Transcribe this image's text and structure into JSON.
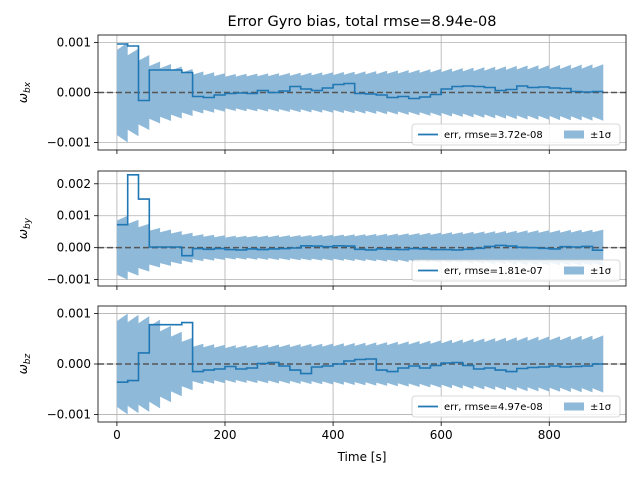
{
  "figure": {
    "title": "Error Gyro bias, total rmse=8.94e-08",
    "xlabel": "Time [s]",
    "legend_sigma_label": "±1σ"
  },
  "colors": {
    "line": "#1f77b4",
    "band": "#8fb9d9",
    "zero_line": "#555555",
    "grid": "#b0b0b0"
  },
  "chart_data": [
    {
      "type": "line",
      "ylabel": "ω_bx",
      "ylabel_main": "ω",
      "ylabel_sub": "bx",
      "xlim": [
        -35,
        942
      ],
      "ylim": [
        -0.00115,
        0.00115
      ],
      "xticks": [
        0,
        200,
        400,
        600,
        800
      ],
      "xtick_labels": [
        "0",
        "200",
        "400",
        "600",
        "800"
      ],
      "yticks": [
        -0.001,
        0.0,
        0.001
      ],
      "ytick_labels": [
        "−0.001",
        "0.000",
        "0.001"
      ],
      "grid": true,
      "legend_position": "lower-right",
      "series": [
        {
          "name": "err, rmse=3.72e-08",
          "kind": "step",
          "x": [
            0,
            20,
            40,
            60,
            120,
            140,
            160,
            180,
            200,
            220,
            240,
            260,
            280,
            300,
            320,
            340,
            360,
            380,
            400,
            420,
            440,
            460,
            480,
            500,
            520,
            540,
            560,
            580,
            600,
            620,
            640,
            660,
            680,
            700,
            720,
            740,
            760,
            780,
            800,
            820,
            840,
            860,
            880,
            900
          ],
          "y": [
            0.00097,
            0.00093,
            -0.00016,
            0.00045,
            0.0004,
            -8e-05,
            -0.0001,
            -5e-05,
            -2e-05,
            -1e-05,
            -2e-05,
            4e-05,
            0.0,
            3e-05,
            0.00012,
            7e-05,
            4e-05,
            9e-05,
            0.00016,
            0.00018,
            -2e-05,
            -3e-05,
            -5e-05,
            -0.0001,
            -8e-05,
            -0.00012,
            -9e-05,
            -4e-05,
            7e-05,
            0.00012,
            0.00013,
            0.00012,
            0.0001,
            4e-05,
            6e-05,
            0.00013,
            0.0001,
            0.00011,
            9e-05,
            8e-05,
            2e-05,
            1e-05,
            2e-05,
            2e-05
          ]
        },
        {
          "name": "±1σ",
          "kind": "sigma_band",
          "x": [
            0,
            40,
            60,
            140,
            200,
            300,
            400,
            500,
            600,
            740,
            900
          ],
          "y": [
            0.001,
            0.00075,
            0.00062,
            0.00042,
            0.00037,
            0.00039,
            0.00041,
            0.00044,
            0.00048,
            0.00054,
            0.00057
          ]
        }
      ]
    },
    {
      "type": "line",
      "ylabel": "ω_by",
      "ylabel_main": "ω",
      "ylabel_sub": "by",
      "xlim": [
        -35,
        942
      ],
      "ylim": [
        -0.0012,
        0.0024
      ],
      "xticks": [
        0,
        200,
        400,
        600,
        800
      ],
      "xtick_labels": [
        "0",
        "200",
        "400",
        "600",
        "800"
      ],
      "yticks": [
        -0.001,
        0.0,
        0.001,
        0.002
      ],
      "ytick_labels": [
        "−0.001",
        "0.000",
        "0.001",
        "0.002"
      ],
      "grid": true,
      "legend_position": "lower-right",
      "series": [
        {
          "name": "err, rmse=1.81e-07",
          "kind": "step",
          "x": [
            0,
            20,
            40,
            60,
            120,
            140,
            160,
            180,
            200,
            220,
            240,
            260,
            280,
            300,
            320,
            340,
            360,
            380,
            400,
            420,
            440,
            460,
            480,
            500,
            520,
            540,
            560,
            580,
            600,
            620,
            640,
            660,
            680,
            700,
            720,
            740,
            760,
            780,
            800,
            820,
            840,
            860,
            880,
            900
          ],
          "y": [
            0.00072,
            0.00228,
            0.00152,
            2e-05,
            -0.00025,
            -3e-05,
            -5e-05,
            -3e-05,
            -6e-05,
            -7e-05,
            -4e-05,
            -6e-05,
            -4e-05,
            -3e-05,
            -1e-05,
            6e-05,
            5e-05,
            3e-05,
            6e-05,
            5e-05,
            -5e-05,
            -7e-05,
            -4e-05,
            -5e-05,
            -6e-05,
            -3e-05,
            -4e-05,
            -6e-05,
            -6e-05,
            -7e-05,
            -5e-05,
            -2e-05,
            4e-05,
            7e-05,
            5e-05,
            1e-05,
            0.0,
            -2e-05,
            -4e-05,
            3e-05,
            2e-05,
            4e-05,
            -8e-05,
            -8e-05
          ]
        },
        {
          "name": "±1σ",
          "kind": "sigma_band",
          "x": [
            0,
            40,
            60,
            140,
            200,
            300,
            400,
            500,
            600,
            740,
            900
          ],
          "y": [
            0.001,
            0.00075,
            0.00062,
            0.00042,
            0.00037,
            0.00039,
            0.00041,
            0.00044,
            0.00048,
            0.00054,
            0.00057
          ]
        }
      ]
    },
    {
      "type": "line",
      "ylabel": "ω_bz",
      "ylabel_main": "ω",
      "ylabel_sub": "bz",
      "xlim": [
        -35,
        942
      ],
      "ylim": [
        -0.00115,
        0.00115
      ],
      "xticks": [
        0,
        200,
        400,
        600,
        800
      ],
      "xtick_labels": [
        "0",
        "200",
        "400",
        "600",
        "800"
      ],
      "yticks": [
        -0.001,
        0.0,
        0.001
      ],
      "ytick_labels": [
        "−0.001",
        "0.000",
        "0.001"
      ],
      "grid": true,
      "legend_position": "lower-right",
      "series": [
        {
          "name": "err, rmse=4.97e-08",
          "kind": "step",
          "x": [
            0,
            20,
            40,
            60,
            120,
            140,
            160,
            180,
            200,
            220,
            240,
            260,
            280,
            300,
            320,
            340,
            360,
            380,
            400,
            420,
            440,
            460,
            480,
            500,
            520,
            540,
            560,
            580,
            600,
            620,
            640,
            660,
            680,
            700,
            720,
            740,
            760,
            780,
            800,
            820,
            840,
            860,
            880,
            900
          ],
          "y": [
            -0.00036,
            -0.00033,
            0.00022,
            0.00078,
            0.00082,
            -0.00015,
            -0.00012,
            -0.0001,
            -5e-05,
            -0.0001,
            -8e-05,
            1e-05,
            3e-05,
            -4e-05,
            -0.00012,
            -0.00019,
            -6e-05,
            -4e-05,
            0.0,
            6e-05,
            9e-05,
            0.0001,
            -0.00012,
            -0.00015,
            -8e-05,
            -4e-05,
            -8e-05,
            -3e-05,
            2e-05,
            3e-05,
            -3e-05,
            -0.0001,
            -8e-05,
            -0.00012,
            -0.00015,
            -9e-05,
            -7e-05,
            -6e-05,
            -4e-05,
            -6e-05,
            -5e-05,
            -4e-05,
            0.0,
            0.0
          ]
        },
        {
          "name": "±1σ",
          "kind": "sigma_band",
          "x": [
            0,
            40,
            60,
            140,
            200,
            300,
            400,
            500,
            600,
            740,
            900
          ],
          "y": [
            0.001,
            0.00095,
            0.00088,
            0.0004,
            0.00037,
            0.00039,
            0.00041,
            0.00044,
            0.00048,
            0.00054,
            0.00057
          ]
        }
      ]
    }
  ]
}
